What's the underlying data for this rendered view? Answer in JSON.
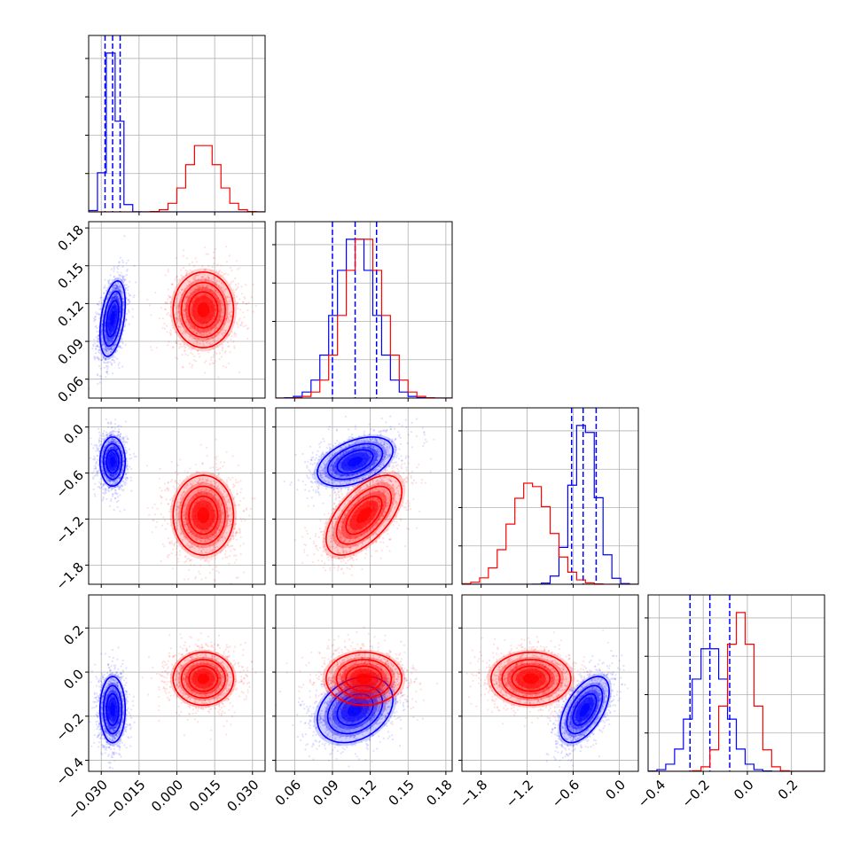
{
  "chart_data": {
    "type": "corner",
    "series": [
      {
        "name": "",
        "color": "#0000ff",
        "mean": [
          -0.0255,
          0.108,
          -0.45,
          -0.17
        ],
        "sd": [
          0.0025,
          0.015,
          0.16,
          0.075
        ],
        "corr": {
          "0_1": 0.4,
          "1_2": 0.45,
          "2_3": 0.55,
          "1_3": 0.3,
          "0_2": 0.0,
          "0_3": 0.0
        },
        "quantile_lines": [
          [
            -0.0285,
            -0.0255,
            -0.0225
          ],
          [
            0.09,
            0.108,
            0.125
          ],
          [
            -0.62,
            -0.47,
            -0.3
          ],
          [
            -0.26,
            -0.17,
            -0.08
          ]
        ]
      },
      {
        "name": "",
        "color": "#ff0000",
        "mean": [
          0.0105,
          0.115,
          -1.15,
          -0.03
        ],
        "sd": [
          0.006,
          0.015,
          0.26,
          0.06
        ],
        "corr": {
          "0_1": 0.0,
          "1_2": 0.6,
          "2_3": 0.0,
          "1_3": 0.0,
          "0_2": 0.0,
          "0_3": 0.0
        },
        "quantile_lines": null
      }
    ],
    "axes": [
      {
        "range": [
          -0.035,
          0.035
        ],
        "ticks": [
          "-0.030",
          "-0.015",
          "0.000",
          "0.015",
          "0.030"
        ],
        "tick_values": [
          -0.03,
          -0.015,
          0.0,
          0.015,
          0.03
        ]
      },
      {
        "range": [
          0.045,
          0.185
        ],
        "ticks": [
          "0.06",
          "0.09",
          "0.12",
          "0.15",
          "0.18"
        ],
        "tick_values": [
          0.06,
          0.09,
          0.12,
          0.15,
          0.18
        ]
      },
      {
        "range": [
          -2.05,
          0.25
        ],
        "ticks": [
          "-1.8",
          "-1.2",
          "-0.6",
          "0.0"
        ],
        "tick_values": [
          -1.8,
          -1.2,
          -0.6,
          0.0
        ]
      },
      {
        "range": [
          -0.45,
          0.35
        ],
        "ticks": [
          "-0.4",
          "-0.2",
          "0.0",
          "0.2"
        ],
        "tick_values": [
          -0.4,
          -0.2,
          0.0,
          0.2
        ]
      }
    ],
    "grid": true,
    "legend": "none",
    "title": "",
    "xlabel": "",
    "ylabel": ""
  }
}
